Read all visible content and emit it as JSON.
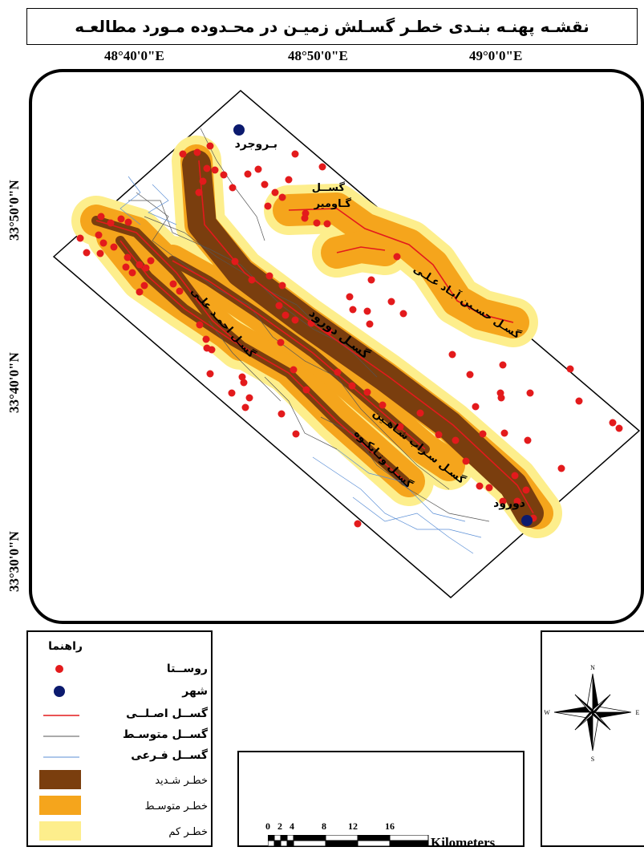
{
  "title": "نقشـه پهنـه بنـدی خطـر گسـلش زمیـن در محـدوده مـورد مطالعـه",
  "longitudes": [
    "48°40'0\"E",
    "48°50'0\"E",
    "49°0'0\"E"
  ],
  "latitudes": [
    "33°50'0\"N",
    "33°40'0\"N",
    "33°30'0\"N"
  ],
  "map_labels": {
    "city_north": "بـروجرد",
    "city_south": "دورود",
    "fault_gavomir_1": "گســل",
    "fault_gavomir_2": "گـاومير",
    "fault_hossein": "گسـل حسـين آبـاد عـلـی",
    "fault_dorud": "گسـل دورود",
    "fault_sarab": "گسـل سـراب شـاهـين",
    "fault_ahmad": "گسـل احمـد علـی",
    "fault_ganjgah": "گسـل ونـايکـوه"
  },
  "legend": {
    "title": "راهنما",
    "items": [
      {
        "label": "روســتا",
        "symbol": "village",
        "color": "#e31a1c"
      },
      {
        "label": "شهر",
        "symbol": "city",
        "color": "#0b1a6e"
      },
      {
        "label": "گســل اصـلــی",
        "symbol": "line",
        "color": "#e31a1c"
      },
      {
        "label": "گســل متوسـط",
        "symbol": "line",
        "color": "#555555"
      },
      {
        "label": "گســل فـرعی",
        "symbol": "line",
        "color": "#5b8fd6"
      },
      {
        "label": "خطـر شـديد",
        "symbol": "area",
        "color": "#7a3e0e"
      },
      {
        "label": "خطـر متوسـط",
        "symbol": "area",
        "color": "#f5a51c"
      },
      {
        "label": "خطـر کم",
        "symbol": "area",
        "color": "#fdee8c"
      }
    ]
  },
  "scale": {
    "ticks": [
      "0",
      "2",
      "4",
      "8",
      "12",
      "16"
    ],
    "unit": "Kilometers"
  },
  "north_arrow": {
    "n": "N",
    "s": "S",
    "e": "E",
    "w": "W"
  }
}
